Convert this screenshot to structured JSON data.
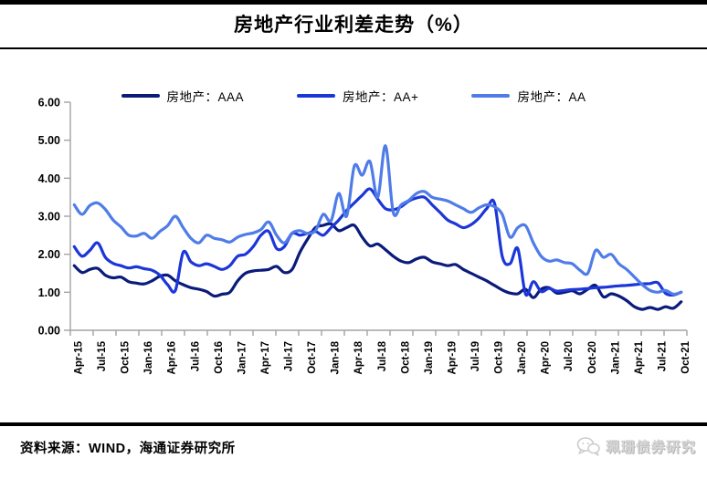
{
  "page": {
    "title": "房地产行业利差走势（%）",
    "source_note": "资料来源：WIND，海通证券研究所",
    "watermark_text": "珮珊债券研究"
  },
  "chart_data": {
    "type": "line",
    "title": "房地产行业利差走势（%）",
    "xlabel": "",
    "ylabel": "",
    "ylim": [
      0,
      6
    ],
    "y_tick_labels": [
      "0.00",
      "1.00",
      "2.00",
      "3.00",
      "4.00",
      "5.00",
      "6.00"
    ],
    "x_tick_labels": [
      "Apr-15",
      "Jul-15",
      "Oct-15",
      "Jan-16",
      "Apr-16",
      "Jul-16",
      "Oct-16",
      "Jan-17",
      "Apr-17",
      "Jul-17",
      "Oct-17",
      "Jan-18",
      "Apr-18",
      "Jul-18",
      "Oct-18",
      "Jan-19",
      "Apr-19",
      "Jul-19",
      "Oct-19",
      "Jan-20",
      "Apr-20",
      "Jul-20",
      "Oct-20",
      "Jan-21",
      "Apr-21",
      "Jul-21",
      "Oct-21"
    ],
    "x_frequency": "monthly",
    "grid": false,
    "legend_position": "top",
    "axis_color": "#a3a3a3",
    "series": [
      {
        "name": "房地产：AAA",
        "color": "#0a1b7a",
        "values": [
          1.7,
          1.52,
          1.6,
          1.63,
          1.45,
          1.38,
          1.4,
          1.28,
          1.24,
          1.22,
          1.3,
          1.42,
          1.45,
          1.3,
          1.2,
          1.12,
          1.08,
          1.02,
          0.9,
          0.95,
          1.0,
          1.3,
          1.5,
          1.56,
          1.58,
          1.6,
          1.68,
          1.52,
          1.6,
          2.05,
          2.4,
          2.7,
          2.76,
          2.8,
          2.62,
          2.7,
          2.76,
          2.45,
          2.22,
          2.27,
          2.12,
          1.95,
          1.82,
          1.78,
          1.88,
          1.92,
          1.8,
          1.75,
          1.7,
          1.73,
          1.6,
          1.5,
          1.4,
          1.3,
          1.18,
          1.06,
          0.98,
          0.96,
          1.08,
          0.86,
          1.08,
          1.12,
          0.98,
          1.0,
          1.04,
          0.96,
          1.08,
          1.18,
          0.88,
          0.96,
          0.9,
          0.78,
          0.62,
          0.55,
          0.6,
          0.55,
          0.62,
          0.58,
          0.75
        ]
      },
      {
        "name": "房地产：AA+",
        "color": "#1c36d8",
        "values": [
          2.2,
          1.95,
          2.1,
          2.3,
          1.92,
          1.76,
          1.7,
          1.64,
          1.67,
          1.62,
          1.58,
          1.45,
          1.2,
          1.05,
          2.05,
          1.8,
          1.7,
          1.75,
          1.68,
          1.6,
          1.7,
          1.95,
          2.0,
          2.2,
          2.5,
          2.6,
          2.15,
          2.2,
          2.55,
          2.5,
          2.55,
          2.6,
          2.5,
          2.7,
          2.9,
          3.15,
          3.35,
          3.55,
          3.72,
          3.45,
          3.2,
          3.17,
          3.25,
          3.4,
          3.48,
          3.5,
          3.3,
          3.1,
          2.9,
          2.8,
          2.7,
          2.78,
          2.95,
          3.2,
          3.35,
          1.95,
          1.75,
          2.15,
          0.95,
          1.28,
          1.02,
          1.1,
          1.03,
          1.05,
          1.07,
          1.08,
          1.1,
          1.12,
          1.13,
          1.15,
          1.17,
          1.18,
          1.2,
          1.22,
          1.23,
          1.25,
          0.97,
          0.93,
          1.0
        ]
      },
      {
        "name": "房地产：AA",
        "color": "#4f7ce8",
        "values": [
          3.3,
          3.05,
          3.28,
          3.35,
          3.18,
          2.9,
          2.72,
          2.5,
          2.48,
          2.55,
          2.42,
          2.6,
          2.75,
          3.0,
          2.7,
          2.42,
          2.3,
          2.5,
          2.42,
          2.38,
          2.32,
          2.45,
          2.52,
          2.56,
          2.65,
          2.85,
          2.5,
          2.3,
          2.56,
          2.62,
          2.55,
          2.62,
          3.05,
          2.88,
          3.6,
          3.0,
          4.32,
          4.08,
          4.44,
          3.5,
          4.85,
          3.1,
          3.3,
          3.42,
          3.6,
          3.65,
          3.5,
          3.45,
          3.4,
          3.3,
          3.2,
          3.1,
          3.22,
          3.3,
          3.25,
          3.05,
          2.45,
          2.7,
          2.75,
          2.3,
          1.95,
          1.82,
          1.85,
          1.78,
          1.75,
          1.58,
          1.5,
          2.1,
          1.92,
          2.0,
          1.75,
          1.6,
          1.4,
          1.2,
          1.05,
          1.0,
          1.05,
          0.95,
          1.0
        ]
      }
    ]
  }
}
